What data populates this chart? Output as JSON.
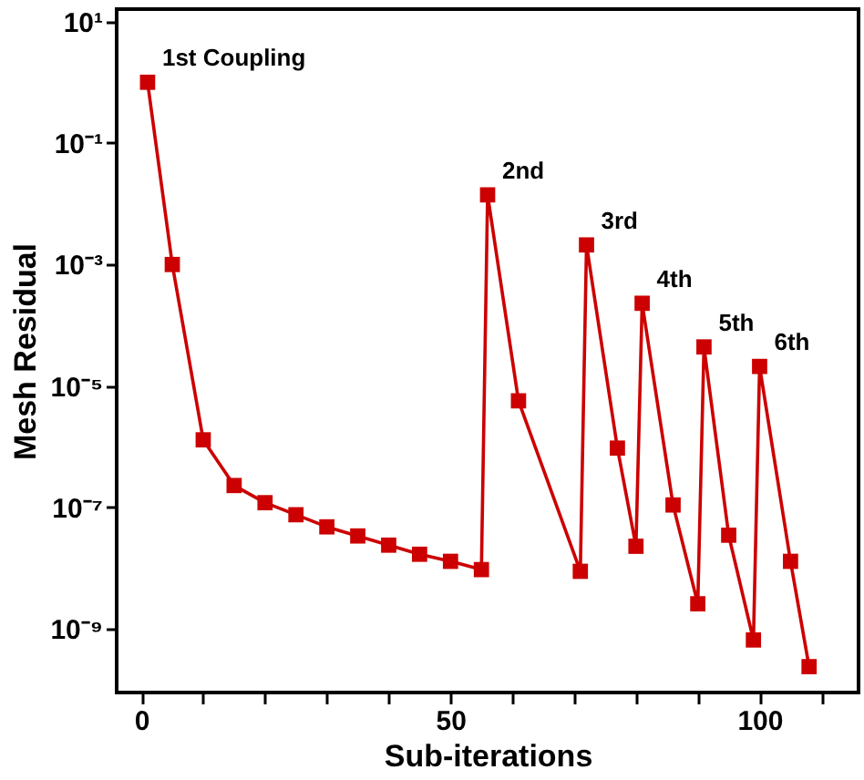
{
  "chart_data": {
    "type": "line",
    "xlabel": "Sub-iterations",
    "ylabel": "Mesh Residual",
    "x": [
      1,
      5,
      10,
      15,
      20,
      25,
      30,
      35,
      40,
      45,
      50,
      55,
      56,
      61,
      71,
      72,
      77,
      80,
      81,
      86,
      90,
      91,
      95,
      99,
      100,
      105,
      108
    ],
    "series": [
      {
        "color": "#cc0000",
        "values": [
          1.0,
          0.001,
          1.3e-06,
          2.3e-07,
          1.2e-07,
          7.6e-08,
          4.8e-08,
          3.4e-08,
          2.4e-08,
          1.7e-08,
          1.3e-08,
          9.5e-09,
          0.014,
          5.7e-06,
          8.9e-09,
          0.0021,
          9.5e-07,
          2.3e-08,
          0.00023,
          1.1e-07,
          2.6e-09,
          4.4e-05,
          3.5e-08,
          6.6e-10,
          2.1e-05,
          1.3e-08,
          2.4e-10
        ]
      }
    ],
    "log": "y",
    "marker": "square",
    "line_style": "solid",
    "grid": false,
    "xlim": [
      -4,
      116
    ],
    "ylim": [
      9e-11,
      16
    ],
    "xticks": [
      0,
      {
        "value": 10,
        "label": null
      },
      {
        "value": 20,
        "label": null
      },
      {
        "value": 30,
        "label": null
      },
      {
        "value": 40,
        "label": null
      },
      50,
      {
        "value": 60,
        "label": null
      },
      {
        "value": 70,
        "label": null
      },
      {
        "value": 80,
        "label": null
      },
      {
        "value": 90,
        "label": null
      },
      100,
      {
        "value": 110,
        "label": null
      }
    ],
    "yticks": [
      {
        "value": 10,
        "label": "10¹"
      },
      {
        "value": 0.1,
        "label": "10⁻¹"
      },
      {
        "value": 0.001,
        "label": "10⁻³"
      },
      {
        "value": 1e-05,
        "label": "10⁻⁵"
      },
      {
        "value": 1e-07,
        "label": "10⁻⁷"
      },
      {
        "value": 1e-09,
        "label": "10⁻⁹"
      }
    ],
    "annotations": [
      {
        "text": "1st Coupling",
        "x": 1,
        "y": 1.0
      },
      {
        "text": "2nd",
        "x": 56,
        "y": 0.014
      },
      {
        "text": "3rd",
        "x": 72,
        "y": 0.0021
      },
      {
        "text": "4th",
        "x": 81,
        "y": 0.00023
      },
      {
        "text": "5th",
        "x": 91,
        "y": 4.4e-05
      },
      {
        "text": "6th",
        "x": 100,
        "y": 2.1e-05
      }
    ]
  }
}
